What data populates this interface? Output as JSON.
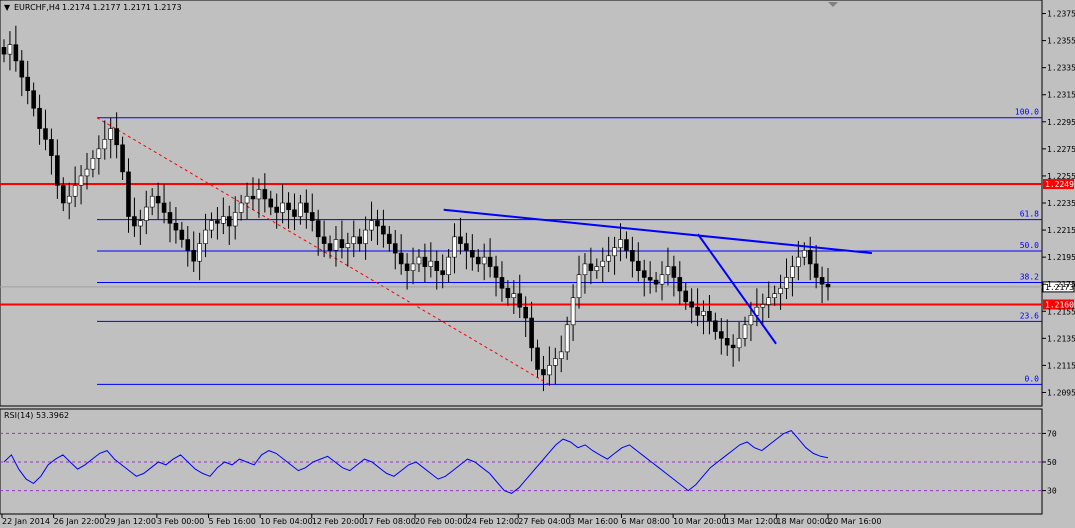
{
  "chart_data": [
    {
      "type": "candlestick",
      "header": {
        "symbol": "EURCHF,H4",
        "ohlc": "1.2174 1.2177 1.2171 1.2173"
      },
      "ylim": [
        1.2085,
        1.2385
      ],
      "y_ticks": [
        "1.2375",
        "1.2355",
        "1.2335",
        "1.2315",
        "1.2295",
        "1.2275",
        "1.2255",
        "1.2235",
        "1.2215",
        "1.2195",
        "1.2175",
        "1.2155",
        "1.2135",
        "1.2115",
        "1.2095"
      ],
      "x_ticks": [
        "22 Jan 2014",
        "26 Jan 22:00",
        "29 Jan 12:00",
        "3 Feb 00:00",
        "5 Feb 16:00",
        "10 Feb 04:00",
        "12 Feb 20:00",
        "17 Feb 08:00",
        "20 Feb 00:00",
        "24 Feb 12:00",
        "27 Feb 04:00",
        "3 Mar 16:00",
        "6 Mar 08:00",
        "10 Mar 20:00",
        "13 Mar 12:00",
        "18 Mar 00:00",
        "20 Mar 16:00"
      ],
      "current_price": "1.2173",
      "horizontal_levels": [
        {
          "label": "1.2249",
          "value": 1.2249,
          "color": "#ff0000"
        },
        {
          "label": "1.2160",
          "value": 1.216,
          "color": "#ff0000"
        }
      ],
      "fibonacci": {
        "color": "#0000ff",
        "high": 1.2298,
        "low": 1.2101,
        "levels": [
          {
            "label": "100.0",
            "ratio": 1.0
          },
          {
            "label": "61.8",
            "ratio": 0.618
          },
          {
            "label": "50.0",
            "ratio": 0.5
          },
          {
            "label": "38.2",
            "ratio": 0.382
          },
          {
            "label": "23.6",
            "ratio": 0.236
          },
          {
            "label": "0.0",
            "ratio": 0.0
          }
        ]
      },
      "trendlines": [
        {
          "from": [
            1.223,
            0.349
          ],
          "to": [
            1.2198,
            0.808
          ],
          "color": "#0000ff"
        },
        {
          "from": [
            1.2212,
            0.593
          ],
          "to": [
            1.2131,
            0.716
          ],
          "color": "#0000ff"
        }
      ],
      "candle_closes": [
        1.2345,
        1.2352,
        1.234,
        1.2328,
        1.2318,
        1.2305,
        1.229,
        1.2282,
        1.227,
        1.2248,
        1.2235,
        1.224,
        1.2248,
        1.2255,
        1.226,
        1.2268,
        1.2275,
        1.2282,
        1.229,
        1.2278,
        1.2258,
        1.2225,
        1.2218,
        1.2222,
        1.2232,
        1.224,
        1.2235,
        1.2228,
        1.222,
        1.2215,
        1.2208,
        1.22,
        1.2192,
        1.2205,
        1.2215,
        1.2222,
        1.222,
        1.2225,
        1.2218,
        1.2228,
        1.2235,
        1.224,
        1.2238,
        1.2245,
        1.2238,
        1.2232,
        1.2228,
        1.2235,
        1.223,
        1.2225,
        1.2235,
        1.2228,
        1.2222,
        1.221,
        1.2205,
        1.22,
        1.2208,
        1.2202,
        1.2205,
        1.221,
        1.2205,
        1.2215,
        1.2222,
        1.2218,
        1.2212,
        1.2205,
        1.2198,
        1.219,
        1.2185,
        1.219,
        1.2195,
        1.2188,
        1.2192,
        1.2185,
        1.2182,
        1.2195,
        1.221,
        1.2205,
        1.22,
        1.2195,
        1.219,
        1.2195,
        1.2188,
        1.218,
        1.2172,
        1.2165,
        1.2168,
        1.2158,
        1.215,
        1.2128,
        1.2112,
        1.2108,
        1.2115,
        1.212,
        1.2125,
        1.2145,
        1.2165,
        1.2182,
        1.219,
        1.2185,
        1.2188,
        1.2192,
        1.2196,
        1.2202,
        1.2208,
        1.22,
        1.2192,
        1.2185,
        1.218,
        1.2178,
        1.2175,
        1.2182,
        1.2188,
        1.218,
        1.217,
        1.2162,
        1.2158,
        1.2152,
        1.2155,
        1.2148,
        1.214,
        1.2135,
        1.213,
        1.2128,
        1.2135,
        1.2145,
        1.2152,
        1.2158,
        1.216,
        1.2165,
        1.2168,
        1.2172,
        1.218,
        1.2188,
        1.2195,
        1.22,
        1.219,
        1.218,
        1.2175,
        1.2173
      ]
    },
    {
      "type": "line",
      "title": "RSI(14) 53.3962",
      "ylim": [
        15,
        85
      ],
      "y_ticks": [
        "70",
        "50",
        "30"
      ],
      "levels": [
        70,
        50,
        30
      ],
      "values": [
        50,
        55,
        45,
        38,
        35,
        40,
        48,
        52,
        55,
        50,
        45,
        48,
        52,
        56,
        58,
        52,
        48,
        44,
        40,
        42,
        46,
        50,
        48,
        52,
        55,
        50,
        45,
        42,
        40,
        46,
        50,
        48,
        52,
        50,
        48,
        55,
        58,
        56,
        52,
        48,
        44,
        46,
        50,
        52,
        54,
        50,
        46,
        44,
        48,
        52,
        50,
        46,
        42,
        40,
        44,
        48,
        50,
        46,
        42,
        38,
        40,
        44,
        48,
        52,
        50,
        46,
        42,
        36,
        30,
        28,
        32,
        38,
        44,
        50,
        56,
        62,
        66,
        64,
        60,
        62,
        58,
        55,
        52,
        56,
        60,
        62,
        58,
        54,
        50,
        46,
        42,
        38,
        34,
        30,
        34,
        40,
        46,
        50,
        54,
        58,
        62,
        64,
        60,
        58,
        62,
        66,
        70,
        72,
        66,
        60,
        56,
        54,
        53
      ]
    }
  ]
}
